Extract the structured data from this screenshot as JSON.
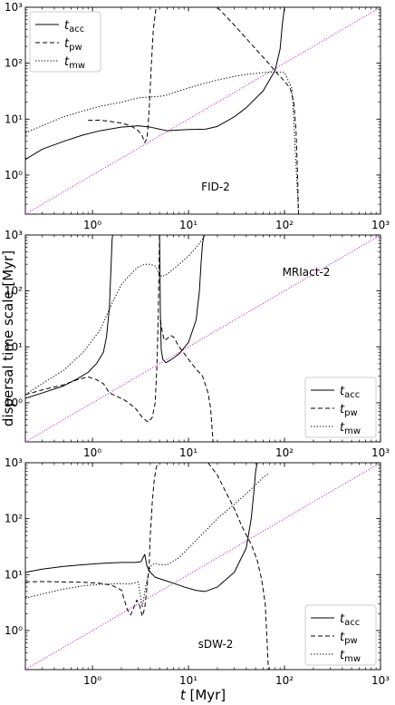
{
  "figure": {
    "ylabel": "dispersal time scale [Myr]",
    "xlabel": "t [Myr]",
    "xlabel_symbol": "t",
    "xlabel_unit": " [Myr]"
  },
  "legend_entries": [
    {
      "symbol": "t",
      "sub": "acc",
      "style": "solid"
    },
    {
      "symbol": "t",
      "sub": "pw",
      "style": "dashed"
    },
    {
      "symbol": "t",
      "sub": "mw",
      "style": "dotted"
    }
  ],
  "chart_data": [
    {
      "type": "line",
      "panel_label": "FID-2",
      "legend_position": "upper-left",
      "xscale": "log",
      "yscale": "log",
      "xlim": [
        0.2,
        1000
      ],
      "ylim": [
        0.2,
        1000
      ],
      "xticks": [
        {
          "v": 1,
          "label": "10⁰"
        },
        {
          "v": 10,
          "label": "10¹"
        },
        {
          "v": 100,
          "label": "10²"
        },
        {
          "v": 1000,
          "label": "10³"
        }
      ],
      "yticks": [
        {
          "v": 1,
          "label": "10⁰"
        },
        {
          "v": 10,
          "label": "10¹"
        },
        {
          "v": 100,
          "label": "10²"
        },
        {
          "v": 1000,
          "label": "10³"
        }
      ],
      "reference_line": {
        "color": "#cc22cc",
        "points": [
          [
            0.2,
            0.2
          ],
          [
            1000,
            1000
          ]
        ]
      },
      "series": [
        {
          "key": "acc",
          "style": "solid",
          "x": [
            0.2,
            0.3,
            0.5,
            0.8,
            1.2,
            2,
            3,
            4,
            5,
            6,
            8,
            10,
            15,
            20,
            30,
            40,
            60,
            80,
            90,
            95,
            100
          ],
          "y": [
            1.9,
            2.9,
            4.0,
            5.2,
            6.2,
            7.2,
            7.6,
            7.2,
            6.6,
            6.2,
            6.4,
            6.5,
            6.6,
            7.4,
            11,
            16,
            32,
            75,
            180,
            500,
            1000
          ]
        },
        {
          "key": "pw",
          "style": "dashed",
          "x": [
            0.9,
            1.2,
            1.6,
            2.0,
            2.5,
            3.0,
            3.3,
            3.5,
            3.7,
            3.9,
            4.1,
            4.3,
            4.6
          ],
          "y": [
            9.5,
            9.6,
            9.0,
            8.5,
            7.6,
            6.2,
            5.0,
            3.8,
            4.5,
            15,
            90,
            400,
            1000
          ]
        },
        {
          "key": "pw_branch2",
          "style": "dashed",
          "x": [
            20,
            30,
            50,
            70,
            85,
            100,
            115,
            125,
            132,
            137,
            140
          ],
          "y": [
            1000,
            480,
            180,
            95,
            64,
            48,
            35,
            20,
            6,
            1,
            0.2
          ]
        },
        {
          "key": "mw",
          "style": "dotted",
          "x": [
            0.2,
            0.3,
            0.5,
            0.8,
            1.2,
            2,
            3,
            4,
            5,
            6,
            8,
            10,
            15,
            20,
            30,
            40,
            60,
            80,
            100,
            120,
            140
          ],
          "y": [
            5.7,
            7.6,
            11,
            14,
            17,
            20,
            24,
            25,
            25.5,
            27,
            32,
            36,
            44,
            50,
            58,
            63,
            68,
            70,
            68,
            35,
            0.2
          ]
        }
      ]
    },
    {
      "type": "line",
      "panel_label": "MRIact-2",
      "legend_position": "lower-right",
      "xscale": "log",
      "yscale": "log",
      "xlim": [
        0.2,
        1000
      ],
      "ylim": [
        0.2,
        1000
      ],
      "xticks": [
        {
          "v": 1,
          "label": "10⁰"
        },
        {
          "v": 10,
          "label": "10¹"
        },
        {
          "v": 100,
          "label": "10²"
        },
        {
          "v": 1000,
          "label": "10³"
        }
      ],
      "yticks": [
        {
          "v": 1,
          "label": "10⁰"
        },
        {
          "v": 10,
          "label": "10¹"
        },
        {
          "v": 100,
          "label": "10²"
        },
        {
          "v": 1000,
          "label": "10³"
        }
      ],
      "reference_line": {
        "color": "#cc22cc",
        "points": [
          [
            0.2,
            0.2
          ],
          [
            1000,
            1000
          ]
        ]
      },
      "series": [
        {
          "key": "acc",
          "style": "solid",
          "x": [
            0.2,
            0.3,
            0.5,
            0.7,
            0.9,
            1.1,
            1.3,
            1.4,
            1.5,
            1.55,
            1.6,
            1.62
          ],
          "y": [
            1.2,
            1.5,
            2.0,
            2.7,
            3.5,
            5.0,
            8.0,
            15,
            50,
            200,
            800,
            1000
          ]
        },
        {
          "key": "acc_branch2",
          "style": "solid",
          "x": [
            5.0,
            5.05,
            5.1,
            5.2,
            5.4,
            5.8,
            6.5,
            8,
            10,
            12,
            13,
            13.5,
            14,
            14.5
          ],
          "y": [
            1000,
            200,
            40,
            9,
            6.0,
            5.2,
            5.8,
            7.5,
            12,
            30,
            100,
            300,
            700,
            1000
          ]
        },
        {
          "key": "pw",
          "style": "dashed",
          "x": [
            0.2,
            0.3,
            0.5,
            0.7,
            0.9,
            1.1,
            1.3,
            1.5,
            1.8,
            2.2,
            2.8,
            3.3,
            3.8,
            4.2,
            4.5,
            4.7,
            4.85,
            4.95,
            5.0
          ],
          "y": [
            1.4,
            1.7,
            2.1,
            2.6,
            2.9,
            2.6,
            2.2,
            1.5,
            1.3,
            1.1,
            0.8,
            0.55,
            0.45,
            0.55,
            1.0,
            5,
            40,
            400,
            1000
          ]
        },
        {
          "key": "pw_branch2",
          "style": "dashed",
          "x": [
            5.1,
            5.3,
            5.6,
            6.0,
            6.5,
            7.0,
            8,
            10,
            12,
            14,
            16,
            17,
            17.5,
            18
          ],
          "y": [
            30,
            20,
            13,
            14,
            16,
            15,
            10,
            6,
            4,
            3,
            1.5,
            0.8,
            0.4,
            0.2
          ]
        },
        {
          "key": "mw",
          "style": "dotted",
          "x": [
            0.2,
            0.3,
            0.5,
            0.8,
            1.2,
            1.6,
            2.0,
            2.5,
            3.0,
            3.5,
            4.0,
            4.5,
            4.8,
            5.0,
            5.3,
            6,
            7,
            8,
            10,
            12,
            13,
            14,
            15
          ],
          "y": [
            1.4,
            2.2,
            3.8,
            8,
            20,
            60,
            130,
            200,
            270,
            300,
            300,
            280,
            230,
            200,
            180,
            200,
            250,
            300,
            420,
            600,
            700,
            850,
            1000
          ]
        }
      ]
    },
    {
      "type": "line",
      "panel_label": "sDW-2",
      "legend_position": "lower-right",
      "xscale": "log",
      "yscale": "log",
      "xlim": [
        0.2,
        1000
      ],
      "ylim": [
        0.2,
        1000
      ],
      "xticks": [
        {
          "v": 1,
          "label": "10⁰"
        },
        {
          "v": 10,
          "label": "10¹"
        },
        {
          "v": 100,
          "label": "10²"
        },
        {
          "v": 1000,
          "label": "10³"
        }
      ],
      "yticks": [
        {
          "v": 1,
          "label": "10⁰"
        },
        {
          "v": 10,
          "label": "10¹"
        },
        {
          "v": 100,
          "label": "10²"
        },
        {
          "v": 1000,
          "label": "10³"
        }
      ],
      "reference_line": {
        "color": "#cc22cc",
        "points": [
          [
            0.2,
            0.2
          ],
          [
            1000,
            1000
          ]
        ]
      },
      "series": [
        {
          "key": "acc",
          "style": "solid",
          "x": [
            0.2,
            0.3,
            0.5,
            0.8,
            1.2,
            2,
            2.8,
            3.2,
            3.5,
            3.7,
            4.0,
            4.5,
            5.5,
            7,
            9,
            12,
            15,
            20,
            30,
            40,
            45,
            48,
            50,
            52
          ],
          "y": [
            11,
            12.5,
            14,
            15,
            15.8,
            16.5,
            16.5,
            17,
            23,
            14,
            11,
            9,
            8,
            7,
            6,
            5.2,
            5.0,
            6,
            11,
            30,
            100,
            300,
            700,
            1000
          ]
        },
        {
          "key": "pw",
          "style": "dashed",
          "x": [
            0.2,
            0.3,
            0.5,
            0.8,
            1.2,
            1.6,
            2.0,
            2.3,
            2.5,
            2.7,
            2.9,
            3.1,
            3.3,
            3.5,
            3.7,
            3.9,
            4.0,
            4.2,
            4.4,
            4.6,
            4.8
          ],
          "y": [
            7.4,
            7.5,
            7.4,
            7.3,
            7.0,
            6.4,
            5.3,
            2.4,
            1.9,
            2.6,
            3.5,
            2.8,
            1.8,
            2.5,
            6,
            15,
            50,
            200,
            500,
            800,
            1000
          ]
        },
        {
          "key": "pw_branch2",
          "style": "dashed",
          "x": [
            16,
            20,
            25,
            30,
            38,
            45,
            52,
            58,
            63,
            66,
            68
          ],
          "y": [
            1000,
            600,
            280,
            150,
            60,
            35,
            18,
            8,
            3,
            0.6,
            0.2
          ]
        },
        {
          "key": "mw",
          "style": "dotted",
          "x": [
            0.2,
            0.3,
            0.5,
            0.8,
            1.2,
            2,
            2.5,
            3.0,
            3.3,
            3.6,
            4.0,
            4.5,
            5,
            6,
            8,
            10,
            15,
            20,
            30,
            40,
            50,
            60,
            70
          ],
          "y": [
            3.8,
            4.5,
            5.5,
            6.3,
            6.7,
            6.9,
            6.8,
            7.4,
            2.6,
            6.5,
            14,
            16,
            15,
            15,
            20,
            30,
            60,
            100,
            180,
            280,
            400,
            550,
            650
          ]
        }
      ]
    }
  ]
}
